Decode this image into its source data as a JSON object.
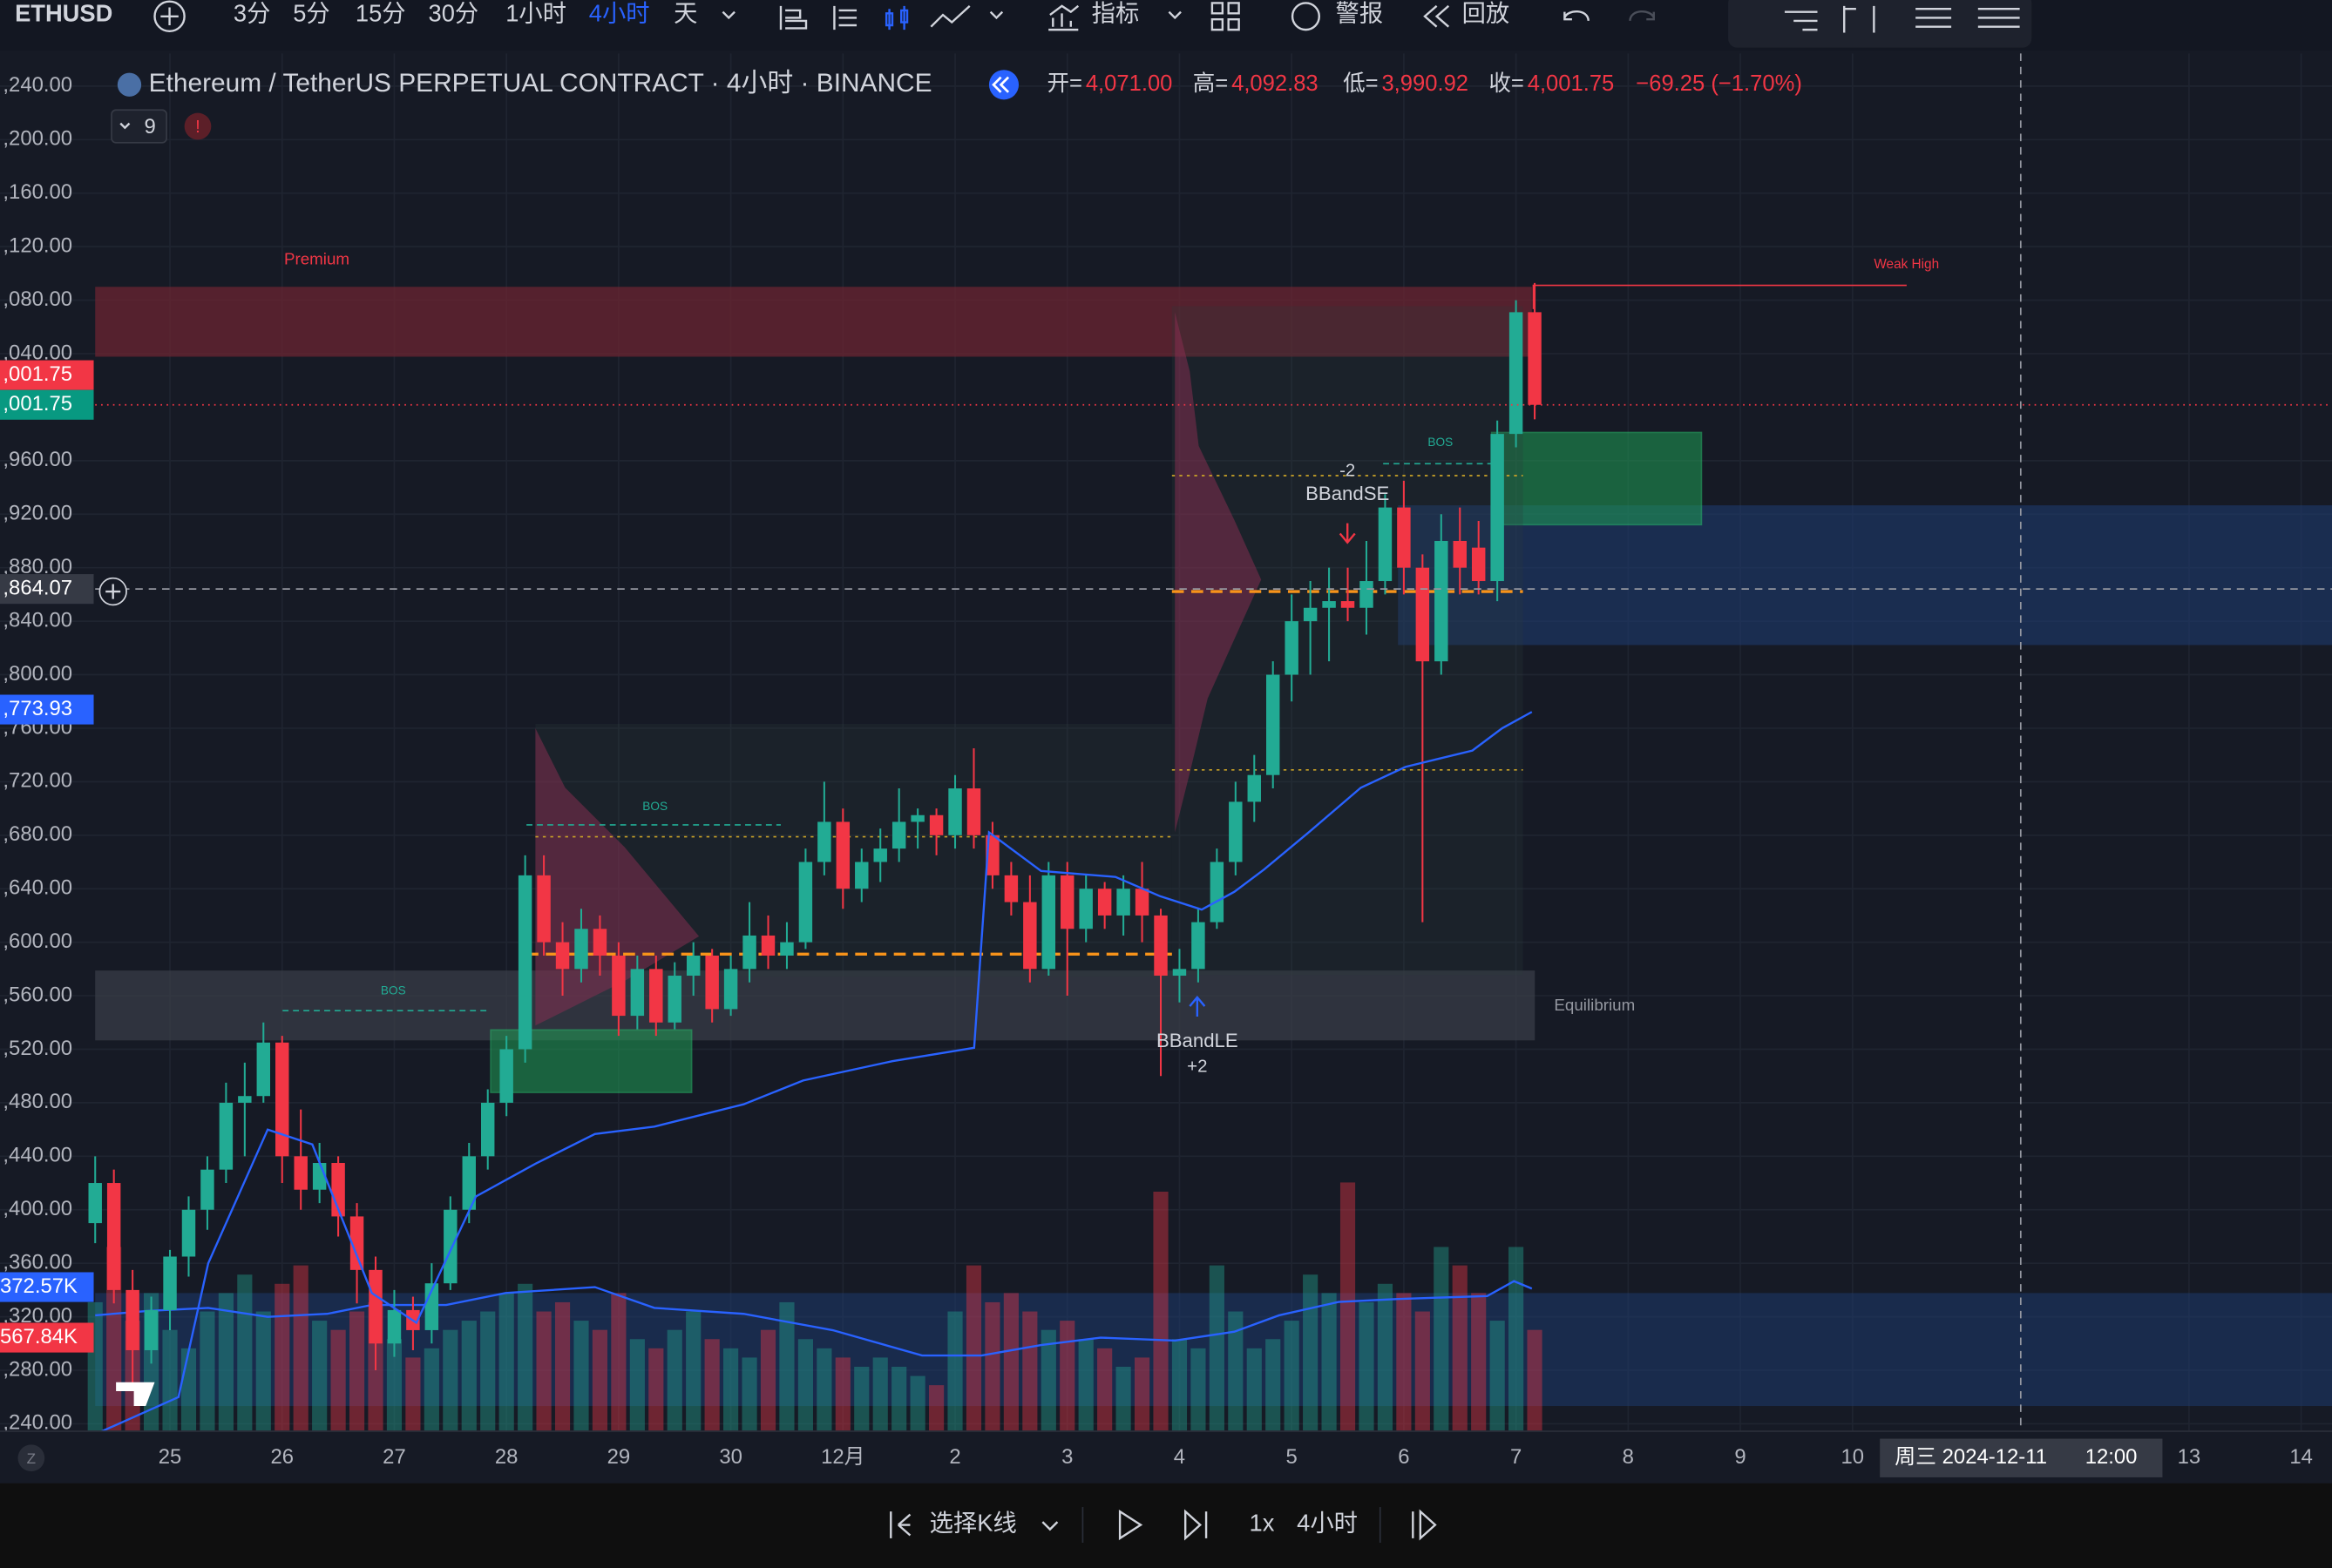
{
  "toolbar": {
    "symbol": "ETHUSD",
    "intervals": [
      "3分",
      "5分",
      "15分",
      "30分",
      "1小时",
      "4小时",
      "天"
    ],
    "indicators": "指标",
    "alerts": "警报",
    "replay": "回放"
  },
  "legend": {
    "title": "Ethereum / TetherUS PERPETUAL CONTRACT · 4小时 · BINANCE",
    "open_label": "开=",
    "open": "4,071.00",
    "high_label": "高=",
    "high": "4,092.83",
    "low_label": "低=",
    "low": "3,990.92",
    "close_label": "收=",
    "close": "4,001.75",
    "change": "−69.25 (−1.70%)",
    "indicator_count": "9"
  },
  "annotations": {
    "premium": "Premium",
    "weak_high": "Weak High",
    "equilibrium": "Equilibrium",
    "bos": [
      "BOS",
      "BOS",
      "BOS"
    ],
    "bband_se": "BBandSE",
    "bband_se_qty": "-2",
    "bband_le": "BBandLE",
    "bband_le_qty": "+2"
  },
  "chart_data": {
    "type": "candlestick",
    "up_color": "#22ab94",
    "down_color": "#f23645",
    "ylim": [
      3234.4,
      4264.4
    ],
    "xlim": [
      0,
      119.65
    ],
    "grid": true,
    "yticks": [
      {
        "value": 4240,
        "label": ",240.00"
      },
      {
        "value": 4200,
        "label": ",200.00"
      },
      {
        "value": 4160,
        "label": ",160.00"
      },
      {
        "value": 4120,
        "label": ",120.00"
      },
      {
        "value": 4080,
        "label": ",080.00"
      },
      {
        "value": 4040,
        "label": ",040.00"
      },
      {
        "value": 3960,
        "label": ",960.00"
      },
      {
        "value": 3920,
        "label": ",920.00"
      },
      {
        "value": 3880,
        "label": ",880.00"
      },
      {
        "value": 3840,
        "label": ",840.00"
      },
      {
        "value": 3800,
        "label": ",800.00"
      },
      {
        "value": 3760,
        "label": ",760.00"
      },
      {
        "value": 3720,
        "label": ",720.00"
      },
      {
        "value": 3680,
        "label": ",680.00"
      },
      {
        "value": 3640,
        "label": ",640.00"
      },
      {
        "value": 3600,
        "label": ",600.00"
      },
      {
        "value": 3560,
        "label": ",560.00"
      },
      {
        "value": 3520,
        "label": ",520.00"
      },
      {
        "value": 3480,
        "label": ",480.00"
      },
      {
        "value": 3440,
        "label": ",440.00"
      },
      {
        "value": 3400,
        "label": ",400.00"
      },
      {
        "value": 3360,
        "label": ",360.00"
      },
      {
        "value": 3320,
        "label": ",320.00"
      },
      {
        "value": 3280,
        "label": ",280.00"
      },
      {
        "value": 3240,
        "label": ",240.00"
      }
    ],
    "xticks": [
      {
        "value": 4,
        "label": "25"
      },
      {
        "value": 10,
        "label": "26"
      },
      {
        "value": 16,
        "label": "27"
      },
      {
        "value": 22,
        "label": "28"
      },
      {
        "value": 28,
        "label": "29"
      },
      {
        "value": 34,
        "label": "30"
      },
      {
        "value": 40,
        "label": "12月"
      },
      {
        "value": 46,
        "label": "2"
      },
      {
        "value": 52,
        "label": "3"
      },
      {
        "value": 58,
        "label": "4"
      },
      {
        "value": 64,
        "label": "5"
      },
      {
        "value": 70,
        "label": "6"
      },
      {
        "value": 76,
        "label": "7"
      },
      {
        "value": 82,
        "label": "8"
      },
      {
        "value": 88,
        "label": "9"
      },
      {
        "value": 94,
        "label": "10"
      },
      {
        "value": 112,
        "label": "13"
      },
      {
        "value": 118,
        "label": "14"
      }
    ],
    "candles": [
      [
        3390,
        3440,
        3375,
        3420
      ],
      [
        3420,
        3430,
        3330,
        3340
      ],
      [
        3340,
        3355,
        3270,
        3295
      ],
      [
        3295,
        3335,
        3285,
        3325
      ],
      [
        3325,
        3370,
        3310,
        3365
      ],
      [
        3365,
        3410,
        3350,
        3400
      ],
      [
        3400,
        3440,
        3385,
        3430
      ],
      [
        3430,
        3495,
        3420,
        3480
      ],
      [
        3480,
        3510,
        3440,
        3485
      ],
      [
        3485,
        3540,
        3480,
        3525
      ],
      [
        3525,
        3530,
        3420,
        3440
      ],
      [
        3440,
        3475,
        3400,
        3415
      ],
      [
        3415,
        3450,
        3405,
        3435
      ],
      [
        3435,
        3440,
        3380,
        3395
      ],
      [
        3395,
        3405,
        3330,
        3355
      ],
      [
        3355,
        3365,
        3280,
        3300
      ],
      [
        3300,
        3340,
        3290,
        3325
      ],
      [
        3325,
        3335,
        3295,
        3310
      ],
      [
        3310,
        3360,
        3300,
        3345
      ],
      [
        3345,
        3410,
        3340,
        3400
      ],
      [
        3400,
        3450,
        3390,
        3440
      ],
      [
        3440,
        3490,
        3430,
        3480
      ],
      [
        3480,
        3530,
        3470,
        3520
      ],
      [
        3520,
        3665,
        3510,
        3650
      ],
      [
        3650,
        3665,
        3590,
        3600
      ],
      [
        3600,
        3615,
        3560,
        3580
      ],
      [
        3580,
        3625,
        3570,
        3610
      ],
      [
        3610,
        3620,
        3575,
        3590
      ],
      [
        3590,
        3600,
        3530,
        3545
      ],
      [
        3545,
        3590,
        3535,
        3580
      ],
      [
        3580,
        3590,
        3530,
        3540
      ],
      [
        3540,
        3585,
        3535,
        3575
      ],
      [
        3575,
        3600,
        3560,
        3590
      ],
      [
        3590,
        3595,
        3540,
        3550
      ],
      [
        3550,
        3590,
        3545,
        3580
      ],
      [
        3580,
        3630,
        3570,
        3605
      ],
      [
        3605,
        3620,
        3580,
        3590
      ],
      [
        3590,
        3615,
        3580,
        3600
      ],
      [
        3600,
        3670,
        3595,
        3660
      ],
      [
        3660,
        3720,
        3650,
        3690
      ],
      [
        3690,
        3700,
        3625,
        3640
      ],
      [
        3640,
        3670,
        3630,
        3660
      ],
      [
        3660,
        3685,
        3645,
        3670
      ],
      [
        3670,
        3715,
        3660,
        3690
      ],
      [
        3690,
        3700,
        3670,
        3695
      ],
      [
        3695,
        3700,
        3665,
        3680
      ],
      [
        3680,
        3725,
        3670,
        3715
      ],
      [
        3715,
        3745,
        3670,
        3680
      ],
      [
        3680,
        3690,
        3640,
        3650
      ],
      [
        3650,
        3660,
        3620,
        3630
      ],
      [
        3630,
        3650,
        3570,
        3580
      ],
      [
        3580,
        3660,
        3575,
        3650
      ],
      [
        3650,
        3660,
        3560,
        3610
      ],
      [
        3610,
        3650,
        3600,
        3640
      ],
      [
        3640,
        3645,
        3610,
        3620
      ],
      [
        3620,
        3650,
        3605,
        3640
      ],
      [
        3640,
        3660,
        3600,
        3620
      ],
      [
        3620,
        3625,
        3500,
        3575
      ],
      [
        3575,
        3595,
        3555,
        3580
      ],
      [
        3580,
        3625,
        3570,
        3615
      ],
      [
        3615,
        3670,
        3610,
        3660
      ],
      [
        3660,
        3720,
        3650,
        3705
      ],
      [
        3705,
        3740,
        3690,
        3725
      ],
      [
        3725,
        3810,
        3715,
        3800
      ],
      [
        3800,
        3860,
        3780,
        3840
      ],
      [
        3840,
        3870,
        3800,
        3850
      ],
      [
        3850,
        3880,
        3810,
        3855
      ],
      [
        3855,
        3880,
        3840,
        3850
      ],
      [
        3850,
        3900,
        3830,
        3870
      ],
      [
        3870,
        3935,
        3860,
        3925
      ],
      [
        3925,
        3945,
        3860,
        3880
      ],
      [
        3880,
        3890,
        3615,
        3810
      ],
      [
        3810,
        3920,
        3800,
        3900
      ],
      [
        3900,
        3925,
        3860,
        3880
      ],
      [
        3895,
        3915,
        3860,
        3870
      ],
      [
        3870,
        3990,
        3855,
        3980
      ],
      [
        3980,
        4080,
        3970,
        4071
      ],
      [
        4071,
        4092.83,
        3990.92,
        4001.75
      ]
    ],
    "volume": [
      140,
      200,
      120,
      150,
      110,
      90,
      130,
      150,
      170,
      130,
      160,
      180,
      120,
      110,
      130,
      140,
      100,
      80,
      90,
      110,
      120,
      130,
      150,
      160,
      130,
      140,
      120,
      110,
      150,
      100,
      90,
      110,
      130,
      100,
      90,
      80,
      110,
      140,
      100,
      90,
      80,
      70,
      80,
      70,
      60,
      50,
      130,
      180,
      140,
      150,
      130,
      110,
      120,
      100,
      90,
      70,
      80,
      260,
      100,
      90,
      180,
      130,
      90,
      100,
      120,
      170,
      150,
      270,
      140,
      160,
      150,
      130,
      200,
      180,
      150,
      120,
      200,
      110
    ],
    "price_tags": [
      {
        "value": 4001.75,
        "label": ",001.75",
        "color": "#f23645"
      },
      {
        "value": 4001.75,
        "label": ",001.75",
        "color": "#089981"
      },
      {
        "value": 3864.07,
        "label": ",864.07",
        "color": "#363a45"
      },
      {
        "value": 3773.93,
        "label": ",773.93",
        "color": "#2962ff"
      }
    ],
    "volume_tags": [
      {
        "label": "372.57K",
        "color": "#2962ff"
      },
      {
        "label": "567.84K",
        "color": "#f23645"
      }
    ],
    "crosshair": {
      "x": 103,
      "y": 3864.07,
      "label": "周三 2024-12-11",
      "time": "12:00"
    }
  },
  "replay_bar": {
    "select": "选择K线",
    "speed": "1x",
    "interval": "4小时"
  }
}
